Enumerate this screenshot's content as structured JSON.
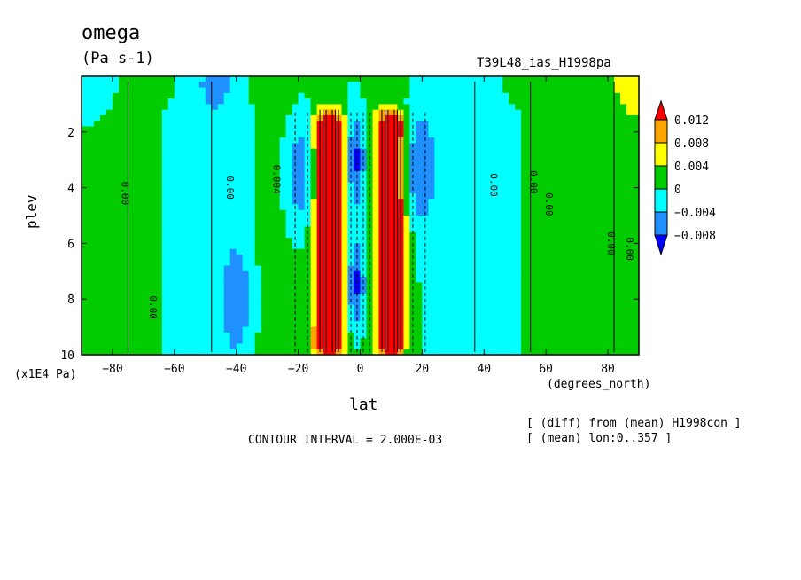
{
  "chart_data": {
    "type": "heatmap",
    "title": "omega",
    "units": "(Pa s-1)",
    "subtitle": "T39L48_ias_H1998pa",
    "xlabel": "lat",
    "x_units": "(degrees_north)",
    "ylabel": "plev",
    "y_units": "(x1E4 Pa)",
    "xlim": [
      -90,
      90
    ],
    "ylim": [
      10,
      0
    ],
    "x_ticks": [
      -80,
      -60,
      -40,
      -20,
      0,
      20,
      40,
      60,
      80
    ],
    "x_tick_labels": [
      "−80",
      "−60",
      "−40",
      "−20",
      "0",
      "20",
      "40",
      "60",
      "80"
    ],
    "y_ticks": [
      2,
      4,
      6,
      8,
      10
    ],
    "y_tick_labels": [
      "2",
      "4",
      "6",
      "8",
      "10"
    ],
    "colorbar": {
      "levels": [
        0.012,
        0.008,
        0.004,
        0,
        -0.004,
        -0.008
      ],
      "labels": [
        "0.012",
        "0.008",
        "0.004",
        "0",
        "−0.004",
        "−0.008"
      ],
      "colors": [
        "#ff0000",
        "#ffa500",
        "#ffff00",
        "#00cc00",
        "#00ffff",
        "#1e90ff",
        "#0000ff"
      ]
    },
    "contour_labels": [
      "0.00",
      "0.00",
      "0.00",
      "0.004",
      "0.00",
      "0.00",
      "0.00",
      "0.00",
      "0.00"
    ],
    "contour_interval": "CONTOUR INTERVAL = 2.000E-03",
    "notes": [
      "[ (diff) from (mean) H1998con ]",
      "[ (mean) lon:0..357 ]"
    ]
  }
}
